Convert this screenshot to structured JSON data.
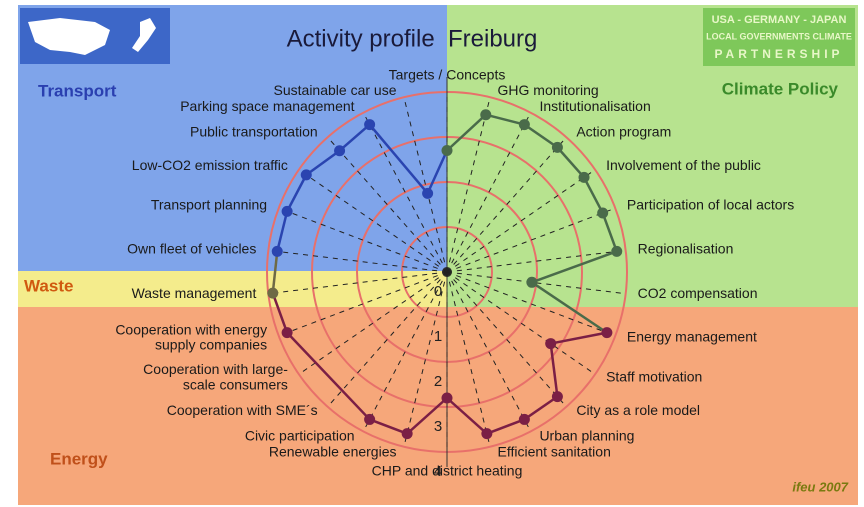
{
  "chart_data": {
    "type": "radar",
    "title": "Activity profile  Freiburg",
    "logo_lines": [
      "USA - GERMANY - JAPAN",
      "LOCAL GOVERNMENTS CLIMATE",
      "PARTNERSHIP"
    ],
    "credit": "ifeu 2007",
    "sections": [
      {
        "name": "Transport",
        "color": "#2a3fb0"
      },
      {
        "name": "Climate Policy",
        "color": "#3a8a2a"
      },
      {
        "name": "Waste",
        "color": "#d05a10"
      },
      {
        "name": "Energy",
        "color": "#c0501a"
      }
    ],
    "categories": [
      "Targets / Concepts",
      "GHG monitoring",
      "Institutionalisation",
      "Action program",
      "Involvement of the public",
      "Participation of local actors",
      "Regionalisation",
      "CO2 compensation",
      "Energy management",
      "Staff motivation",
      "City as a role model",
      "Urban planning",
      "Efficient sanitation",
      "CHP and district heating",
      "Renewable energies",
      "Civic participation",
      "Cooperation with SME´s",
      "Cooperation with large-\nscale consumers",
      "Cooperation with energy\nsupply companies",
      "Waste management",
      "Own fleet of vehicles",
      "Transport planning",
      "Low-CO2 emission traffic",
      "Public transportation",
      "Parking space management",
      "Sustainable car use"
    ],
    "values": [
      2.7,
      3.6,
      3.7,
      3.7,
      3.7,
      3.7,
      3.8,
      1.9,
      3.8,
      2.8,
      3.7,
      3.7,
      3.7,
      2.8,
      3.7,
      3.7,
      null,
      null,
      3.8,
      3.9,
      3.8,
      3.8,
      3.8,
      3.6,
      3.7,
      1.8
    ],
    "point_colors": [
      "#4a6b4a",
      "#4a6b4a",
      "#4a6b4a",
      "#4a6b4a",
      "#4a6b4a",
      "#4a6b4a",
      "#4a6b4a",
      "#4a6b4a",
      "#7b1f45",
      "#7b1f45",
      "#7b1f45",
      "#7b1f45",
      "#7b1f45",
      "#7b1f45",
      "#7b1f45",
      "#7b1f45",
      "#7b1f45",
      "#7b1f45",
      "#7b1f45",
      "#6e6a45",
      "#2a44b0",
      "#2a44b0",
      "#2a44b0",
      "#2a44b0",
      "#2a44b0",
      "#2a44b0"
    ],
    "rlim": [
      0,
      4
    ],
    "rticks": [
      0,
      1,
      2,
      3,
      4
    ]
  }
}
